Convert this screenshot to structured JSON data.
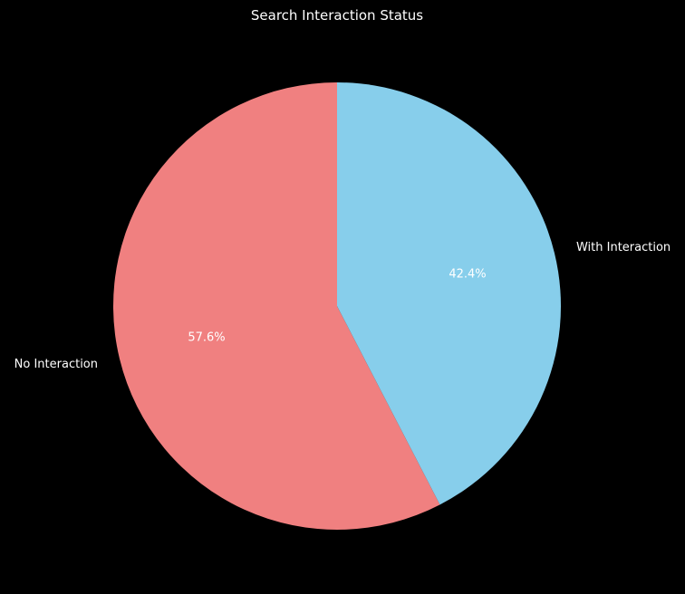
{
  "chart_data": {
    "type": "pie",
    "title": "Search Interaction Status",
    "categories": [
      "No Interaction",
      "With Interaction"
    ],
    "values": [
      57.6,
      42.4
    ],
    "value_labels": [
      "57.6%",
      "42.4%"
    ],
    "colors": [
      "#f08080",
      "#87ceeb"
    ],
    "start_angle": "90 degrees (top), counter-clockwise",
    "background": "#000000",
    "text_color": "#ffffff"
  }
}
